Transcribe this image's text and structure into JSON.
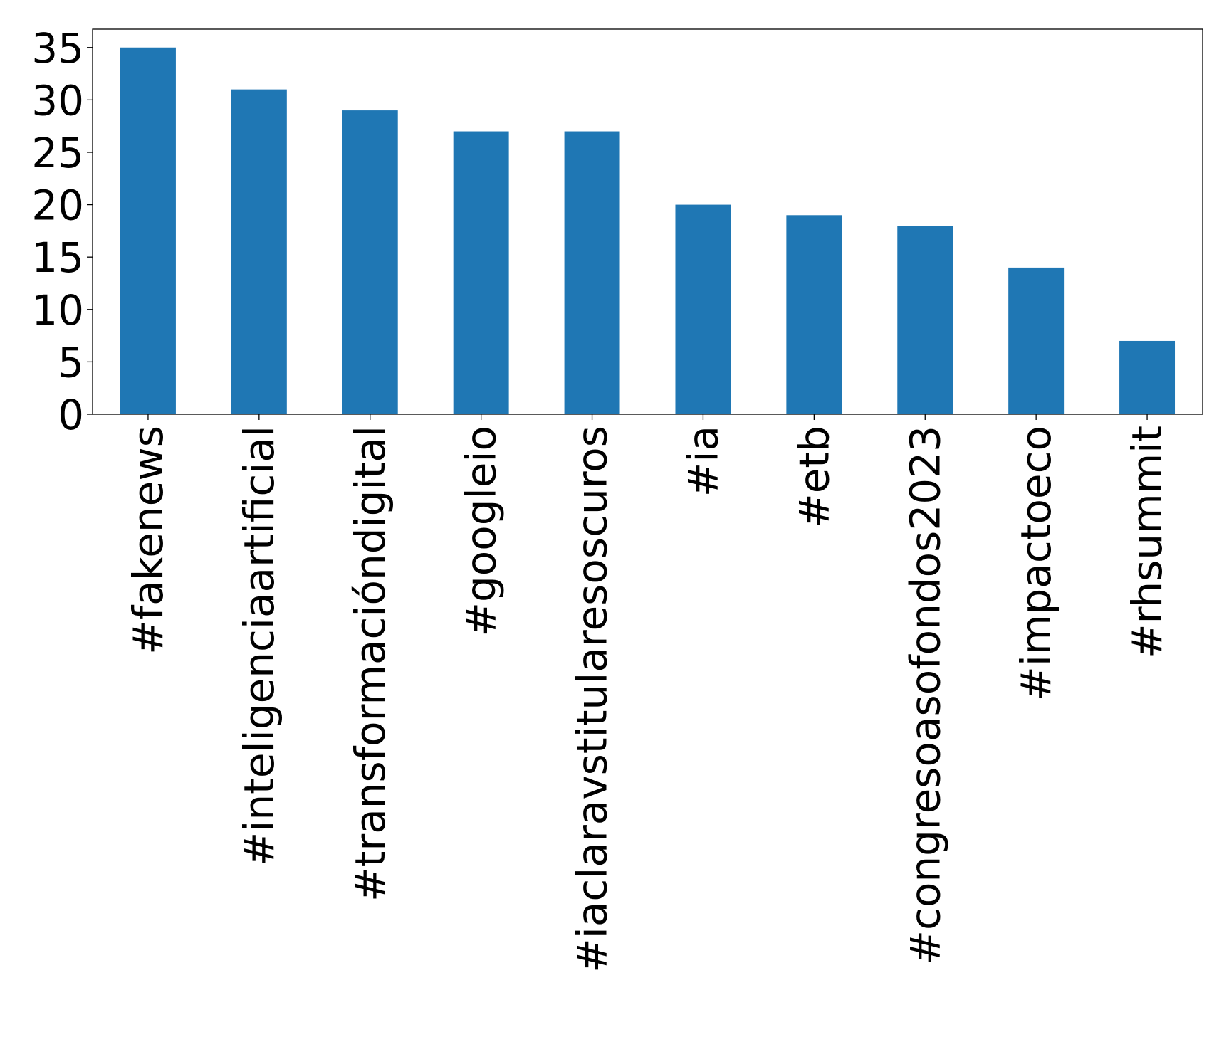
{
  "chart_data": {
    "type": "bar",
    "title": "",
    "xlabel": "",
    "ylabel": "",
    "categories": [
      "#fakenews",
      "#inteligenciaartificial",
      "#transformacióndigital",
      "#googleio",
      "#iaclaravstitularesoscuros",
      "#ia",
      "#etb",
      "#congresoasofondos2023",
      "#impactoeco",
      "#rhsummit"
    ],
    "values": [
      35,
      31,
      29,
      27,
      27,
      20,
      19,
      18,
      14,
      7
    ],
    "ylim": [
      0,
      36.75
    ],
    "yticks": [
      0,
      5,
      10,
      15,
      20,
      25,
      30,
      35
    ],
    "ytick_labels": [
      "0",
      "5",
      "10",
      "15",
      "20",
      "25",
      "30",
      "35"
    ],
    "grid": false,
    "legend": "none",
    "bar_color": "#1f77b4"
  }
}
